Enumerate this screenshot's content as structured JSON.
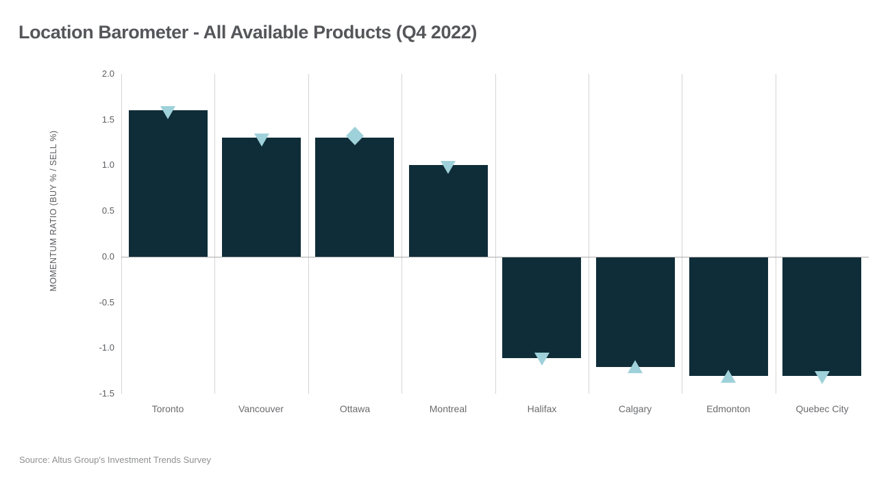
{
  "title": "Location Barometer - All Available Products (Q4 2022)",
  "source": "Source: Altus Group's Investment Trends Survey",
  "chart_data": {
    "type": "bar",
    "title": "Location Barometer - All Available Products (Q4 2022)",
    "xlabel": "",
    "ylabel": "MOMENTUM RATIO (BUY % / SELL %)",
    "ylim": [
      -1.5,
      2.0
    ],
    "ytick_labels": [
      "2.0",
      "1.5",
      "1.0",
      "0.5",
      "0.0",
      "-0.5",
      "-1.0",
      "-1.5"
    ],
    "categories": [
      "Toronto",
      "Vancouver",
      "Ottawa",
      "Montreal",
      "Halifax",
      "Calgary",
      "Edmonton",
      "Quebec City"
    ],
    "values": [
      1.6,
      1.3,
      1.3,
      1.0,
      -1.1,
      -1.2,
      -1.3,
      -1.3
    ],
    "markers": [
      "triangle-down",
      "triangle-down",
      "diamond",
      "triangle-down",
      "triangle-down",
      "triangle-up",
      "triangle-up",
      "triangle-down"
    ],
    "grid": "vertical-category-separators-only",
    "legend": "none",
    "colors": {
      "bar": "#0f2d38",
      "marker": "#9ed1da",
      "gridline": "#d4d4d4",
      "zero_line": "#ababab"
    }
  }
}
